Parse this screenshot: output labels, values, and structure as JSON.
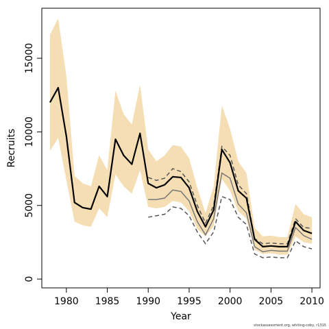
{
  "chart_data": {
    "type": "line",
    "xlabel": "Year",
    "ylabel": "Recruits",
    "xlim": [
      1977,
      2011
    ],
    "ylim": [
      -600,
      18400
    ],
    "x_ticks": [
      1980,
      1985,
      1990,
      1995,
      2000,
      2005,
      2010
    ],
    "y_ticks": [
      0,
      5000,
      10000,
      15000
    ],
    "x_tick_labels": [
      "1980",
      "1985",
      "1990",
      "1995",
      "2000",
      "2005",
      "2010"
    ],
    "y_tick_labels": [
      "0",
      "5000",
      "10000",
      "15000"
    ],
    "grid": false,
    "legend": "none",
    "colors": {
      "band": "#f5deb3",
      "main_line": "#000000",
      "sensitivity_line": "#777777",
      "sensitivity_dashed": "#555555"
    },
    "years": [
      1978,
      1979,
      1980,
      1981,
      1982,
      1983,
      1984,
      1985,
      1986,
      1987,
      1988,
      1989,
      1990,
      1991,
      1992,
      1993,
      1994,
      1995,
      1996,
      1997,
      1998,
      1999,
      2000,
      2001,
      2002,
      2003,
      2004,
      2005,
      2006,
      2007,
      2008,
      2009,
      2010
    ],
    "recruits": [
      12000,
      13000,
      9700,
      5200,
      4850,
      4750,
      6300,
      5600,
      9500,
      8400,
      7800,
      9900,
      6500,
      6200,
      6400,
      6950,
      6900,
      6200,
      4600,
      3550,
      4700,
      8800,
      7900,
      6000,
      5500,
      2700,
      2200,
      2250,
      2200,
      2200,
      3900,
      3300,
      3100
    ],
    "upper_bound": [
      16600,
      17700,
      13800,
      7000,
      6500,
      6300,
      8400,
      7400,
      12800,
      11200,
      10500,
      13200,
      8800,
      8000,
      8400,
      9100,
      9000,
      8200,
      6200,
      4500,
      6300,
      11800,
      10200,
      8000,
      7200,
      3500,
      2900,
      2950,
      2850,
      2850,
      5100,
      4400,
      4200
    ],
    "lower_bound": [
      8700,
      9600,
      6700,
      3900,
      3650,
      3550,
      4800,
      4200,
      7100,
      6300,
      5800,
      7400,
      4900,
      4800,
      4900,
      5300,
      5200,
      4600,
      3400,
      2900,
      3600,
      6800,
      6000,
      4600,
      4100,
      2000,
      1700,
      1750,
      1650,
      1650,
      2900,
      2500,
      2400
    ],
    "series": [
      {
        "values_from_year": 1990,
        "line_style": "solid",
        "values": [
          5400,
          5400,
          5500,
          6050,
          5950,
          5300,
          3900,
          3000,
          4100,
          7200,
          6850,
          5100,
          4500,
          2200,
          1850,
          1950,
          1900,
          1900,
          3500,
          2950,
          2700
        ]
      },
      {
        "values_from_year": 1990,
        "line_style": "dashed-upper",
        "values": [
          6900,
          6700,
          6850,
          7500,
          7300,
          6600,
          5000,
          3800,
          5000,
          9000,
          8400,
          6400,
          5800,
          2750,
          2400,
          2450,
          2400,
          2400,
          4100,
          3500,
          3450
        ]
      },
      {
        "values_from_year": 1990,
        "line_style": "dashed-lower",
        "values": [
          4200,
          4300,
          4400,
          4900,
          4800,
          4300,
          3200,
          2400,
          3200,
          5600,
          5400,
          4200,
          3700,
          1700,
          1450,
          1500,
          1450,
          1450,
          2600,
          2200,
          2050
        ]
      }
    ]
  },
  "footer_text": "stockassessment.org, whiting-coby, r1315"
}
